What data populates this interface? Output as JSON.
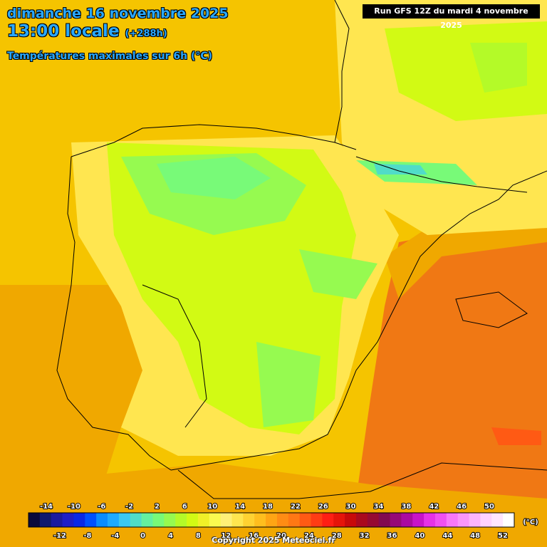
{
  "header": {
    "date": "dimanche 16 novembre 2025",
    "time": "13:00 locale",
    "offset": "(+288h)",
    "subtitle": "Températures maximales sur 6h (°C)",
    "run": "Run GFS 12Z du mardi 4 novembre 2025"
  },
  "legend": {
    "unit": "(°C)",
    "top_labels": [
      "-14",
      "-10",
      "-6",
      "-2",
      "2",
      "6",
      "10",
      "14",
      "18",
      "22",
      "26",
      "30",
      "34",
      "38",
      "42",
      "46",
      "50"
    ],
    "bottom_labels": [
      "-12",
      "-8",
      "-4",
      "0",
      "4",
      "8",
      "12",
      "16",
      "20",
      "24",
      "28",
      "32",
      "36",
      "40",
      "44",
      "48",
      "52"
    ],
    "colors": [
      "#0a0a3c",
      "#101a6e",
      "#1a1aa0",
      "#1e1ec8",
      "#0a28e6",
      "#0050ff",
      "#0a8cff",
      "#1eaaff",
      "#3cc8f0",
      "#50dcc8",
      "#64f0a0",
      "#78fa78",
      "#96fa50",
      "#b4fa28",
      "#d2fa14",
      "#f0f028",
      "#fafa50",
      "#fff078",
      "#ffe650",
      "#ffd232",
      "#ffbe1e",
      "#ffa514",
      "#ff8c14",
      "#ff7814",
      "#ff5a14",
      "#ff3c14",
      "#ff1e14",
      "#e6140a",
      "#c80a0a",
      "#aa0a1e",
      "#960a32",
      "#820a50",
      "#960a78",
      "#aa0aa0",
      "#c814c8",
      "#e632e6",
      "#f050f0",
      "#f878f8",
      "#fa96fa",
      "#fcb4fc",
      "#ffd2ff",
      "#ffe6ff",
      "#ffffff"
    ]
  },
  "map_colors": {
    "sea_warm": "#f0a800",
    "sea_hot": "#f07814",
    "land_mild": "#ffe650",
    "land_cool": "#d2fa14",
    "land_cold": "#78fa50",
    "sea_cold": "#ffd232"
  },
  "footer": {
    "copyright": "Copyright 2025 Meteociel.fr"
  }
}
